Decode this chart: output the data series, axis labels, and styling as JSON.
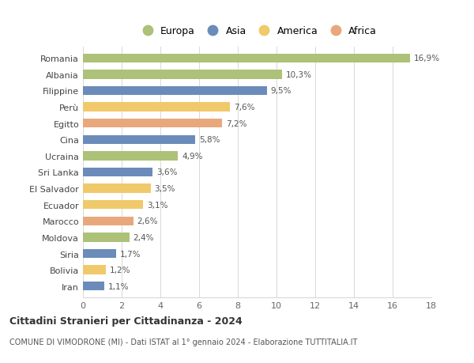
{
  "categories": [
    "Romania",
    "Albania",
    "Filippine",
    "Perù",
    "Egitto",
    "Cina",
    "Ucraina",
    "Sri Lanka",
    "El Salvador",
    "Ecuador",
    "Marocco",
    "Moldova",
    "Siria",
    "Bolivia",
    "Iran"
  ],
  "values": [
    16.9,
    10.3,
    9.5,
    7.6,
    7.2,
    5.8,
    4.9,
    3.6,
    3.5,
    3.1,
    2.6,
    2.4,
    1.7,
    1.2,
    1.1
  ],
  "labels": [
    "16,9%",
    "10,3%",
    "9,5%",
    "7,6%",
    "7,2%",
    "5,8%",
    "4,9%",
    "3,6%",
    "3,5%",
    "3,1%",
    "2,6%",
    "2,4%",
    "1,7%",
    "1,2%",
    "1,1%"
  ],
  "colors": [
    "#adc178",
    "#adc178",
    "#6b8cba",
    "#f0c96b",
    "#e8a87c",
    "#6b8cba",
    "#adc178",
    "#6b8cba",
    "#f0c96b",
    "#f0c96b",
    "#e8a87c",
    "#adc178",
    "#6b8cba",
    "#f0c96b",
    "#6b8cba"
  ],
  "legend_labels": [
    "Europa",
    "Asia",
    "America",
    "Africa"
  ],
  "legend_colors": [
    "#adc178",
    "#6b8cba",
    "#f0c96b",
    "#e8a87c"
  ],
  "title": "Cittadini Stranieri per Cittadinanza - 2024",
  "subtitle": "COMUNE DI VIMODRONE (MI) - Dati ISTAT al 1° gennaio 2024 - Elaborazione TUTTITALIA.IT",
  "xlim": [
    0,
    18
  ],
  "xticks": [
    0,
    2,
    4,
    6,
    8,
    10,
    12,
    14,
    16,
    18
  ],
  "background_color": "#ffffff",
  "grid_color": "#d8d8d8",
  "bar_height": 0.55
}
